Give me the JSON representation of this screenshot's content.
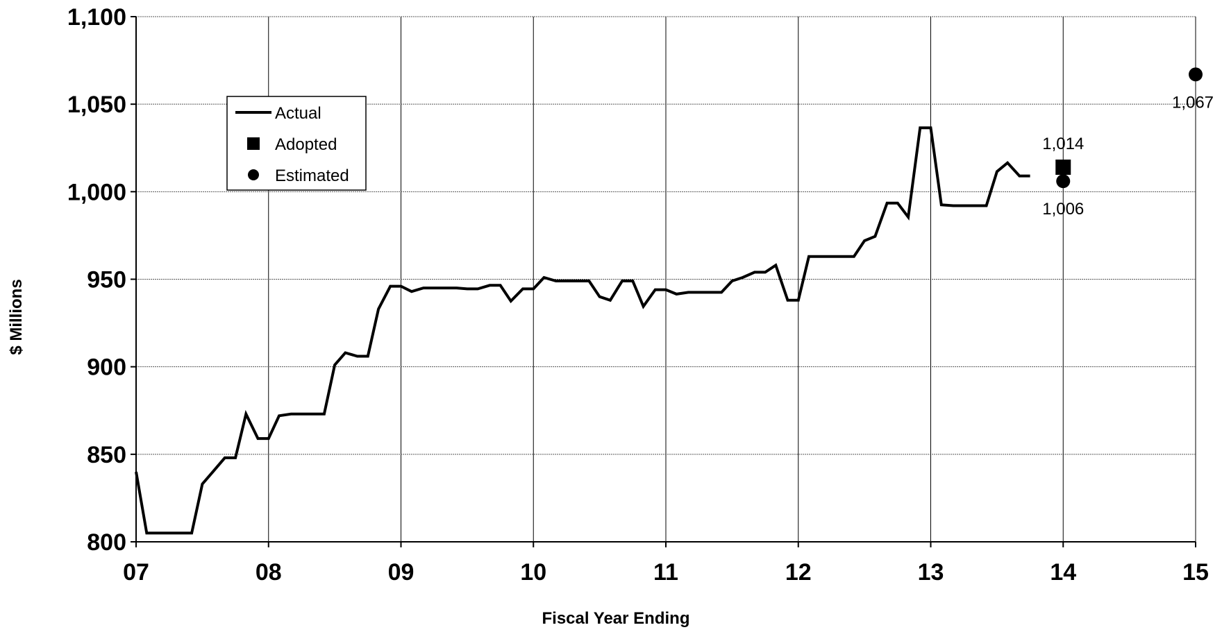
{
  "chart_data": {
    "type": "line",
    "xlabel": "Fiscal Year Ending",
    "ylabel": "$ Millions",
    "xlim": [
      7,
      15
    ],
    "ylim": [
      800,
      1100
    ],
    "x_ticks": [
      7,
      8,
      9,
      10,
      11,
      12,
      13,
      14,
      15
    ],
    "x_tick_labels": [
      "07",
      "08",
      "09",
      "10",
      "11",
      "12",
      "13",
      "14",
      "15"
    ],
    "y_ticks": [
      800,
      850,
      900,
      950,
      1000,
      1050,
      1100
    ],
    "y_tick_labels": [
      "800",
      "850",
      "900",
      "950",
      "1,000",
      "1,050",
      "1,100"
    ],
    "grid": true,
    "legend": {
      "placement": "upper-left",
      "entries": [
        {
          "label": "Actual",
          "marker": "line"
        },
        {
          "label": "Adopted",
          "marker": "square"
        },
        {
          "label": "Estimated",
          "marker": "circle"
        }
      ]
    },
    "series": [
      {
        "name": "Actual",
        "style": "line",
        "color": "#000000",
        "points": [
          [
            7.0,
            840
          ],
          [
            7.08,
            805
          ],
          [
            7.17,
            805
          ],
          [
            7.25,
            805
          ],
          [
            7.33,
            805
          ],
          [
            7.42,
            805
          ],
          [
            7.5,
            833
          ],
          [
            7.58,
            840
          ],
          [
            7.67,
            848
          ],
          [
            7.75,
            848
          ],
          [
            7.83,
            873
          ],
          [
            7.92,
            859
          ],
          [
            8.0,
            859
          ],
          [
            8.08,
            872
          ],
          [
            8.17,
            873
          ],
          [
            8.25,
            873
          ],
          [
            8.33,
            873
          ],
          [
            8.42,
            873
          ],
          [
            8.5,
            901
          ],
          [
            8.58,
            908
          ],
          [
            8.67,
            906
          ],
          [
            8.75,
            906
          ],
          [
            8.83,
            933
          ],
          [
            8.92,
            946
          ],
          [
            9.0,
            946
          ],
          [
            9.08,
            943
          ],
          [
            9.17,
            945
          ],
          [
            9.25,
            945
          ],
          [
            9.33,
            945
          ],
          [
            9.42,
            945
          ],
          [
            9.5,
            944.5
          ],
          [
            9.58,
            944.5
          ],
          [
            9.67,
            946.5
          ],
          [
            9.75,
            946.5
          ],
          [
            9.83,
            937.5
          ],
          [
            9.92,
            944.5
          ],
          [
            10.0,
            944.5
          ],
          [
            10.08,
            951
          ],
          [
            10.17,
            949
          ],
          [
            10.25,
            949
          ],
          [
            10.33,
            949
          ],
          [
            10.42,
            949
          ],
          [
            10.5,
            940
          ],
          [
            10.58,
            938
          ],
          [
            10.67,
            949
          ],
          [
            10.75,
            949
          ],
          [
            10.83,
            934.5
          ],
          [
            10.92,
            944
          ],
          [
            11.0,
            944
          ],
          [
            11.08,
            941.5
          ],
          [
            11.17,
            942.5
          ],
          [
            11.25,
            942.5
          ],
          [
            11.33,
            942.5
          ],
          [
            11.42,
            942.5
          ],
          [
            11.5,
            949
          ],
          [
            11.58,
            951
          ],
          [
            11.67,
            954
          ],
          [
            11.75,
            954
          ],
          [
            11.83,
            958
          ],
          [
            11.92,
            938
          ],
          [
            12.0,
            938
          ],
          [
            12.08,
            963
          ],
          [
            12.17,
            963
          ],
          [
            12.25,
            963
          ],
          [
            12.33,
            963
          ],
          [
            12.42,
            963
          ],
          [
            12.5,
            972
          ],
          [
            12.58,
            974.5
          ],
          [
            12.67,
            993.5
          ],
          [
            12.75,
            993.5
          ],
          [
            12.83,
            985.5
          ],
          [
            12.92,
            1036.5
          ],
          [
            13.0,
            1036.5
          ],
          [
            13.08,
            992.5
          ],
          [
            13.17,
            992
          ],
          [
            13.25,
            992
          ],
          [
            13.33,
            992
          ],
          [
            13.42,
            992
          ],
          [
            13.5,
            1011.5
          ],
          [
            13.58,
            1016.5
          ],
          [
            13.67,
            1009
          ],
          [
            13.75,
            1009
          ]
        ]
      },
      {
        "name": "Adopted",
        "style": "square",
        "color": "#000000",
        "points": [
          [
            14,
            1014
          ]
        ],
        "labels": [
          "1,014"
        ]
      },
      {
        "name": "Estimated",
        "style": "circle",
        "color": "#000000",
        "points": [
          [
            14,
            1006
          ],
          [
            15,
            1067
          ]
        ],
        "labels": [
          "1,006",
          "1,067"
        ]
      }
    ]
  }
}
